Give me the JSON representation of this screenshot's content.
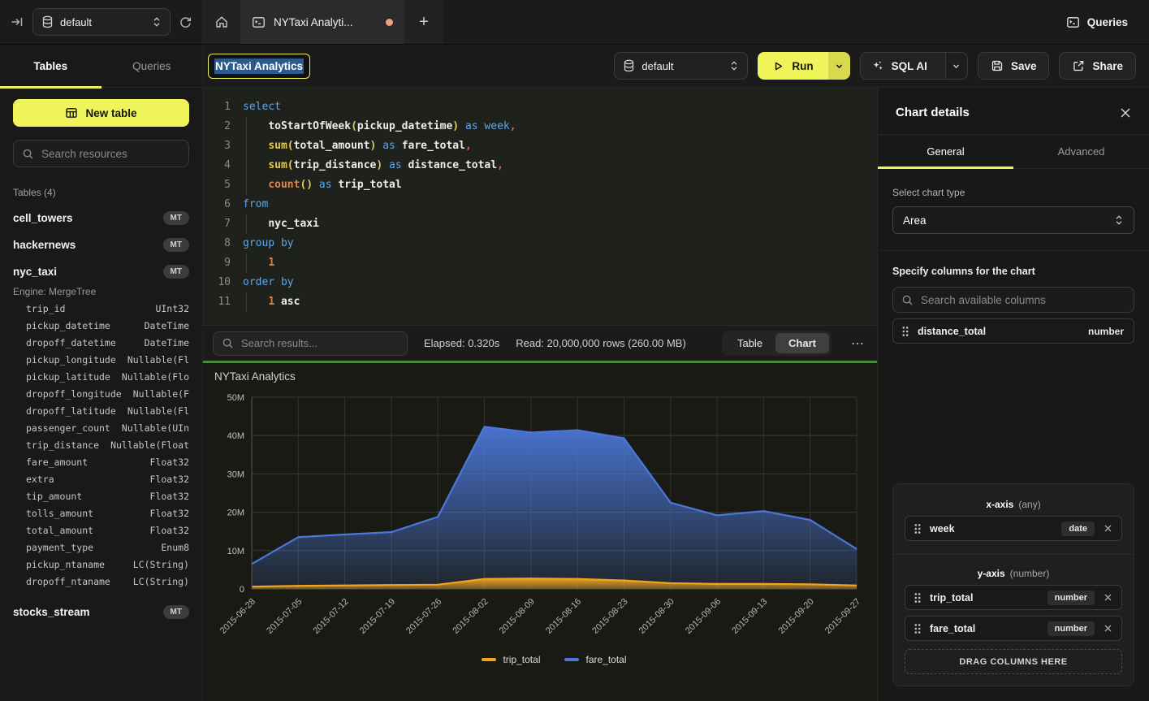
{
  "topbar": {
    "database": "default",
    "tab_title": "NYTaxi Analyti...",
    "queries_label": "Queries"
  },
  "sidebar": {
    "tab_tables": "Tables",
    "tab_queries": "Queries",
    "new_table_label": "New table",
    "search_placeholder": "Search resources",
    "section_label": "Tables (4)",
    "tables": [
      {
        "name": "cell_towers",
        "badge": "MT"
      },
      {
        "name": "hackernews",
        "badge": "MT"
      },
      {
        "name": "nyc_taxi",
        "badge": "MT",
        "engine": "Engine: MergeTree",
        "columns": [
          [
            "trip_id",
            "UInt32"
          ],
          [
            "pickup_datetime",
            "DateTime"
          ],
          [
            "dropoff_datetime",
            "DateTime"
          ],
          [
            "pickup_longitude",
            "Nullable(Fl"
          ],
          [
            "pickup_latitude",
            "Nullable(Flo"
          ],
          [
            "dropoff_longitude",
            "Nullable(F"
          ],
          [
            "dropoff_latitude",
            "Nullable(Fl"
          ],
          [
            "passenger_count",
            "Nullable(UIn"
          ],
          [
            "trip_distance",
            "Nullable(Float"
          ],
          [
            "fare_amount",
            "Float32"
          ],
          [
            "extra",
            "Float32"
          ],
          [
            "tip_amount",
            "Float32"
          ],
          [
            "tolls_amount",
            "Float32"
          ],
          [
            "total_amount",
            "Float32"
          ],
          [
            "payment_type",
            "Enum8"
          ],
          [
            "pickup_ntaname",
            "LC(String)"
          ],
          [
            "dropoff_ntaname",
            "LC(String)"
          ]
        ]
      },
      {
        "name": "stocks_stream",
        "badge": "MT"
      }
    ]
  },
  "toolbar": {
    "query_title": "NYTaxi Analytics",
    "database": "default",
    "run_label": "Run",
    "sql_ai_label": "SQL AI",
    "save_label": "Save",
    "share_label": "Share"
  },
  "editor": {
    "lines": [
      {
        "n": "1",
        "t": [
          [
            "kw",
            "select"
          ]
        ]
      },
      {
        "n": "2",
        "t": [
          [
            "ws",
            "    "
          ],
          [
            "id",
            "toStartOfWeek"
          ],
          [
            "par",
            "("
          ],
          [
            "id",
            "pickup_datetime"
          ],
          [
            "par",
            ")"
          ],
          [
            "kw",
            " as week"
          ],
          [
            "pun",
            ","
          ]
        ]
      },
      {
        "n": "3",
        "t": [
          [
            "ws",
            "    "
          ],
          [
            "fny",
            "sum"
          ],
          [
            "par",
            "("
          ],
          [
            "id",
            "total_amount"
          ],
          [
            "par",
            ")"
          ],
          [
            "kw",
            " as "
          ],
          [
            "id",
            "fare_total"
          ],
          [
            "pun",
            ","
          ]
        ]
      },
      {
        "n": "4",
        "t": [
          [
            "ws",
            "    "
          ],
          [
            "fny",
            "sum"
          ],
          [
            "par",
            "("
          ],
          [
            "id",
            "trip_distance"
          ],
          [
            "par",
            ")"
          ],
          [
            "kw",
            " as "
          ],
          [
            "id",
            "distance_total"
          ],
          [
            "pun",
            ","
          ]
        ]
      },
      {
        "n": "5",
        "t": [
          [
            "ws",
            "    "
          ],
          [
            "fno",
            "count"
          ],
          [
            "par",
            "()"
          ],
          [
            "kw",
            " as "
          ],
          [
            "id",
            "trip_total"
          ]
        ]
      },
      {
        "n": "6",
        "t": [
          [
            "kw",
            "from"
          ]
        ]
      },
      {
        "n": "7",
        "t": [
          [
            "ws",
            "    "
          ],
          [
            "id",
            "nyc_taxi"
          ]
        ]
      },
      {
        "n": "8",
        "t": [
          [
            "kw",
            "group by"
          ]
        ]
      },
      {
        "n": "9",
        "t": [
          [
            "ws",
            "    "
          ],
          [
            "num",
            "1"
          ]
        ]
      },
      {
        "n": "10",
        "t": [
          [
            "kw",
            "order by"
          ]
        ]
      },
      {
        "n": "11",
        "t": [
          [
            "ws",
            "    "
          ],
          [
            "num",
            "1"
          ],
          [
            "id",
            " asc"
          ]
        ]
      }
    ]
  },
  "results_bar": {
    "search_placeholder": "Search results...",
    "elapsed": "Elapsed: 0.320s",
    "read": "Read: 20,000,000 rows (260.00 MB)",
    "toggle_table": "Table",
    "toggle_chart": "Chart",
    "active_view": "Chart"
  },
  "chart_data": {
    "type": "area",
    "title": "NYTaxi Analytics",
    "x": [
      "2015-06-28",
      "2015-07-05",
      "2015-07-12",
      "2015-07-19",
      "2015-07-26",
      "2015-08-02",
      "2015-08-09",
      "2015-08-16",
      "2015-08-23",
      "2015-08-30",
      "2015-09-06",
      "2015-09-13",
      "2015-09-20",
      "2015-09-27"
    ],
    "series": [
      {
        "name": "fare_total",
        "color": "#4b77d8",
        "values_millions": [
          6.5,
          13.5,
          14.2,
          14.8,
          18.8,
          42.3,
          40.8,
          41.4,
          39.3,
          22.5,
          19.2,
          20.3,
          18.0,
          10.4
        ]
      },
      {
        "name": "trip_total",
        "color": "#f2a51c",
        "values_millions": [
          0.6,
          0.8,
          0.9,
          1.0,
          1.1,
          2.6,
          2.7,
          2.6,
          2.2,
          1.5,
          1.3,
          1.3,
          1.2,
          0.9
        ]
      }
    ],
    "legend": [
      "trip_total",
      "fare_total"
    ],
    "legend_position": "bottom",
    "xlabel": "",
    "ylabel": "",
    "y_ticks": [
      "0",
      "10M",
      "20M",
      "30M",
      "40M",
      "50M"
    ],
    "ylim_millions": [
      0,
      50
    ],
    "grid": true
  },
  "right_panel": {
    "title": "Chart details",
    "tab_general": "General",
    "tab_advanced": "Advanced",
    "chart_type_label": "Select chart type",
    "chart_type_value": "Area",
    "columns_label": "Specify columns for the chart",
    "columns_search_placeholder": "Search available columns",
    "available_columns": [
      {
        "name": "distance_total",
        "type": "number"
      }
    ],
    "x_axis_label": "x-axis",
    "x_axis_constraint": "(any)",
    "x_axis_columns": [
      {
        "name": "week",
        "type": "date"
      }
    ],
    "y_axis_label": "y-axis",
    "y_axis_constraint": "(number)",
    "y_axis_columns": [
      {
        "name": "trip_total",
        "type": "number"
      },
      {
        "name": "fare_total",
        "type": "number"
      }
    ],
    "drop_zone_label": "DRAG COLUMNS HERE"
  },
  "colors": {
    "accent_yellow": "#eef45a",
    "run_caret_yellow": "#d6da4c",
    "tab_modified_dot": "#eda080",
    "divider_green": "#4a8a3e",
    "title_selection_blue": "#2d5a8e",
    "chart_blue": "#4b77d8",
    "chart_orange": "#f2a51c"
  },
  "icons": {
    "collapse-sidebar-icon": "arrow-to-bar",
    "database-icon": "db-cylinder",
    "updown-icon": "chevron-up-down",
    "refresh-icon": "circular-arrow",
    "home-icon": "house-outline",
    "query-tab-icon": "terminal-window",
    "new-tab-icon": "plus",
    "queries-icon": "terminal-window",
    "new-table-icon": "table-grid",
    "search-icon": "magnifier",
    "run-icon": "play-triangle",
    "sql-ai-icon": "sparkles",
    "save-icon": "floppy-disk",
    "share-icon": "box-arrow-out",
    "more-icon": "ellipsis",
    "close-icon": "x-mark",
    "drag-handle-icon": "six-dots",
    "remove-icon": "x-mark"
  }
}
